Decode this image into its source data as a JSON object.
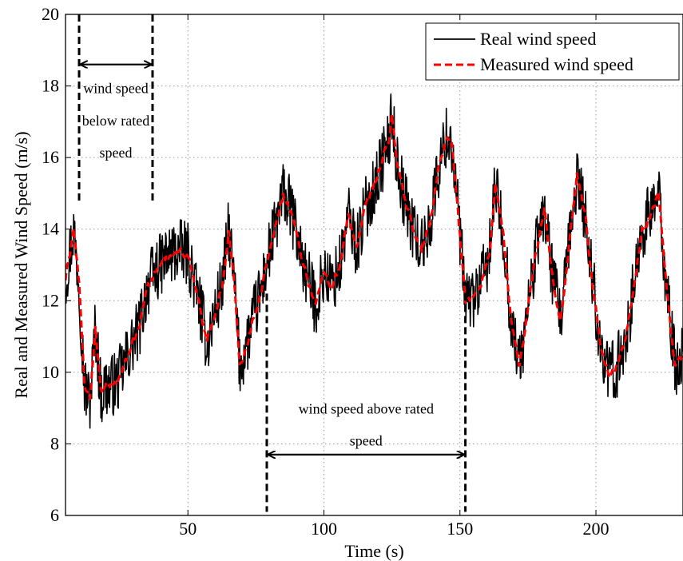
{
  "chart_data": {
    "type": "line",
    "title": "",
    "xlabel": "Time (s)",
    "ylabel": "Real and Measured Wind Speed (m/s)",
    "xlim": [
      5,
      232
    ],
    "ylim": [
      6,
      20
    ],
    "xticks": [
      50,
      100,
      150,
      200
    ],
    "yticks": [
      6,
      8,
      10,
      12,
      14,
      16,
      18,
      20
    ],
    "grid": true,
    "legend_position": "top-right",
    "x_anchor": [
      5,
      8,
      10,
      12,
      14,
      16,
      18,
      20,
      24,
      28,
      32,
      35,
      38,
      42,
      46,
      50,
      54,
      57,
      60,
      63,
      65,
      67,
      69,
      71,
      74,
      77,
      80,
      83,
      85,
      88,
      91,
      94,
      97,
      100,
      103,
      106,
      109,
      112,
      115,
      118,
      121,
      124,
      125,
      127,
      130,
      133,
      136,
      139,
      142,
      145,
      147,
      150,
      152,
      155,
      158,
      161,
      163,
      166,
      169,
      172,
      175,
      178,
      181,
      184,
      187,
      190,
      193,
      196,
      199,
      202,
      205,
      208,
      211,
      214,
      217,
      220,
      223,
      226,
      229,
      232
    ],
    "series": [
      {
        "name": "Real wind speed",
        "color": "#000000",
        "dash": "solid",
        "noise": 0.9,
        "points_per_unit": 5,
        "y_anchor": [
          12.6,
          14.0,
          12.5,
          9.6,
          9.2,
          11.3,
          9.4,
          9.6,
          9.7,
          10.5,
          11.2,
          12.4,
          12.8,
          13.2,
          13.4,
          13.3,
          12.0,
          10.8,
          11.7,
          12.6,
          14.0,
          12.5,
          10.2,
          10.6,
          11.5,
          12.3,
          13.4,
          14.3,
          15.0,
          14.5,
          13.5,
          12.6,
          11.9,
          12.8,
          12.4,
          13.0,
          14.4,
          13.5,
          14.5,
          15.1,
          15.8,
          16.5,
          17.2,
          15.8,
          14.7,
          14.0,
          13.4,
          14.2,
          15.6,
          16.6,
          16.4,
          13.8,
          12.0,
          12.1,
          12.5,
          13.4,
          15.2,
          13.8,
          11.3,
          10.2,
          11.8,
          13.4,
          14.6,
          12.7,
          11.4,
          13.4,
          15.5,
          14.4,
          12.4,
          10.6,
          9.9,
          10.2,
          11.0,
          12.4,
          14.0,
          14.4,
          15.0,
          12.3,
          10.2,
          10.4
        ]
      },
      {
        "name": "Measured wind speed",
        "color": "#ff0000",
        "dash": "dashed",
        "noise": 0.22,
        "points_per_unit": 3,
        "y_anchor": [
          12.6,
          14.0,
          12.5,
          9.6,
          9.2,
          11.3,
          9.4,
          9.6,
          9.7,
          10.5,
          11.2,
          12.4,
          12.8,
          13.2,
          13.4,
          13.3,
          12.0,
          10.8,
          11.7,
          12.6,
          14.0,
          12.5,
          10.2,
          10.6,
          11.5,
          12.3,
          13.4,
          14.3,
          15.0,
          14.5,
          13.5,
          12.6,
          11.9,
          12.8,
          12.4,
          13.0,
          14.4,
          13.5,
          14.5,
          15.1,
          15.8,
          16.5,
          17.2,
          15.8,
          14.7,
          14.0,
          13.4,
          14.2,
          15.6,
          16.6,
          16.4,
          13.8,
          12.0,
          12.1,
          12.5,
          13.4,
          15.2,
          13.8,
          11.3,
          10.2,
          11.8,
          13.4,
          14.6,
          12.7,
          11.4,
          13.4,
          15.5,
          14.4,
          12.4,
          10.6,
          9.9,
          10.2,
          11.0,
          12.4,
          14.0,
          14.4,
          15.0,
          12.3,
          10.2,
          10.4
        ]
      }
    ],
    "annotations": {
      "below_rated": {
        "lines": [
          "wind speed",
          "below rated",
          "speed"
        ],
        "x_start": 10,
        "x_end": 37,
        "arrow_y": 18.6,
        "text_x": 23.5,
        "text_y": [
          17.8,
          16.9,
          16.0
        ],
        "vline_from": 20,
        "vline_to": 14.8
      },
      "above_rated": {
        "lines": [
          "wind speed above rated",
          "speed"
        ],
        "x_start": 79,
        "x_end": 152,
        "arrow_y": 7.7,
        "text_x": 115.5,
        "text_y": [
          8.85,
          7.95
        ],
        "vline_from": 12.2,
        "vline_to": 6.1
      }
    }
  }
}
